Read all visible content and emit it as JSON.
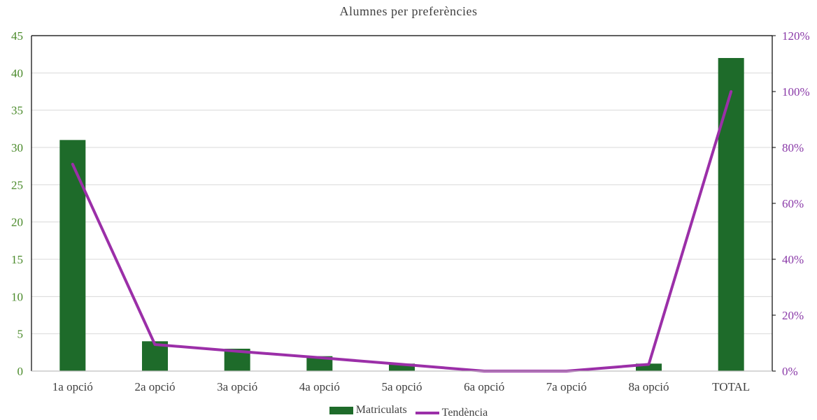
{
  "chart_data": {
    "type": "bar",
    "title": "Alumnes per preferències",
    "categories": [
      "1a opció",
      "2a opció",
      "3a opció",
      "4a opció",
      "5a opció",
      "6a opció",
      "7a opció",
      "8a opció",
      "TOTAL"
    ],
    "series": [
      {
        "name": "Matriculats",
        "type": "bar",
        "axis": "left",
        "color": "#1e6b2a",
        "values": [
          31,
          4,
          3,
          2,
          1,
          0,
          0,
          1,
          42
        ]
      },
      {
        "name": "Tendència",
        "type": "line",
        "axis": "right",
        "color": "#9b2fa8",
        "values": [
          0.74,
          0.095,
          0.071,
          0.048,
          0.024,
          0,
          0,
          0.024,
          1.0
        ]
      }
    ],
    "left_axis": {
      "ylim": [
        0,
        45
      ],
      "ticks": [
        0,
        5,
        10,
        15,
        20,
        25,
        30,
        35,
        40,
        45
      ],
      "color": "#4a8a2a"
    },
    "right_axis": {
      "ylim": [
        0,
        1.2
      ],
      "ticks": [
        0,
        0.2,
        0.4,
        0.6,
        0.8,
        1.0,
        1.2
      ],
      "tick_labels": [
        "0%",
        "20%",
        "40%",
        "60%",
        "80%",
        "100%",
        "120%"
      ],
      "color": "#8a3aa8"
    },
    "grid": true,
    "legend_position": "bottom"
  }
}
